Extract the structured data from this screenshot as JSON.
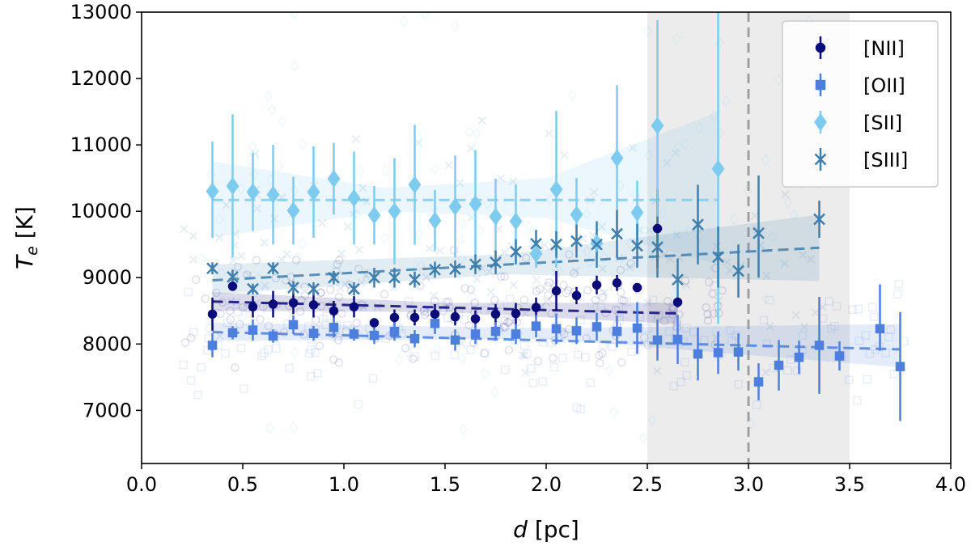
{
  "chart_data": {
    "type": "scatter",
    "xlabel_var": "d",
    "xlabel_unit": " [pc]",
    "ylabel_var": "T",
    "ylabel_sub": "e",
    "ylabel_unit": " [K]",
    "xlim": [
      0.0,
      4.0
    ],
    "ylim": [
      6200,
      13000
    ],
    "xticks": [
      "0.0",
      "0.5",
      "1.0",
      "1.5",
      "2.0",
      "2.5",
      "3.0",
      "3.5",
      "4.0"
    ],
    "yticks": [
      "7000",
      "8000",
      "9000",
      "10000",
      "11000",
      "12000",
      "13000"
    ],
    "shaded_region": [
      2.5,
      3.5
    ],
    "vline": 3.0,
    "legend_position": "top-right",
    "series": [
      {
        "name": "[NII]",
        "marker": "circle",
        "color": "#0b0b7a",
        "fit_line": [
          [
            0.35,
            8640
          ],
          [
            2.65,
            8460
          ]
        ],
        "points": [
          [
            0.35,
            8450,
            8200,
            8700
          ],
          [
            0.45,
            8870,
            8800,
            8940
          ],
          [
            0.55,
            8560,
            8400,
            8720
          ],
          [
            0.65,
            8600,
            8400,
            8800
          ],
          [
            0.75,
            8620,
            8450,
            8790
          ],
          [
            0.85,
            8590,
            8400,
            8780
          ],
          [
            0.95,
            8500,
            8350,
            8650
          ],
          [
            1.05,
            8560,
            8400,
            8720
          ],
          [
            1.15,
            8320,
            8250,
            8390
          ],
          [
            1.25,
            8400,
            8280,
            8520
          ],
          [
            1.35,
            8400,
            8280,
            8520
          ],
          [
            1.45,
            8450,
            8300,
            8600
          ],
          [
            1.55,
            8410,
            8280,
            8540
          ],
          [
            1.65,
            8380,
            8250,
            8510
          ],
          [
            1.75,
            8450,
            8300,
            8600
          ],
          [
            1.85,
            8460,
            8300,
            8620
          ],
          [
            1.95,
            8550,
            8400,
            8700
          ],
          [
            2.05,
            8800,
            8500,
            9100
          ],
          [
            2.15,
            8730,
            8600,
            8860
          ],
          [
            2.25,
            8890,
            8750,
            9030
          ],
          [
            2.35,
            8920,
            8800,
            9040
          ],
          [
            2.45,
            8850,
            8800,
            8900
          ],
          [
            2.55,
            9740,
            9150,
            10330
          ],
          [
            2.65,
            8630,
            8550,
            8710
          ]
        ]
      },
      {
        "name": "[OII]",
        "marker": "square",
        "color": "#4d7fde",
        "fit_line": [
          [
            0.35,
            8180
          ],
          [
            3.75,
            7920
          ]
        ],
        "points": [
          [
            0.35,
            7980,
            7800,
            8160
          ],
          [
            0.45,
            8170,
            8070,
            8270
          ],
          [
            0.55,
            8210,
            8050,
            8370
          ],
          [
            0.65,
            8120,
            8020,
            8220
          ],
          [
            0.75,
            8290,
            8150,
            8430
          ],
          [
            0.85,
            8160,
            8050,
            8270
          ],
          [
            0.95,
            8250,
            8100,
            8400
          ],
          [
            1.05,
            8150,
            8050,
            8250
          ],
          [
            1.15,
            8130,
            8000,
            8260
          ],
          [
            1.25,
            8190,
            8050,
            8330
          ],
          [
            1.35,
            8080,
            7950,
            8210
          ],
          [
            1.45,
            8310,
            8150,
            8470
          ],
          [
            1.55,
            8060,
            7900,
            8220
          ],
          [
            1.65,
            8150,
            8000,
            8300
          ],
          [
            1.75,
            8190,
            8050,
            8330
          ],
          [
            1.85,
            8150,
            8000,
            8300
          ],
          [
            1.95,
            8270,
            8100,
            8440
          ],
          [
            2.05,
            8230,
            8000,
            8460
          ],
          [
            2.15,
            8200,
            8000,
            8400
          ],
          [
            2.25,
            8260,
            8050,
            8470
          ],
          [
            2.35,
            8190,
            7950,
            8430
          ],
          [
            2.45,
            8240,
            7850,
            8630
          ],
          [
            2.55,
            8060,
            7750,
            8370
          ],
          [
            2.65,
            8070,
            7700,
            8440
          ],
          [
            2.75,
            7850,
            7450,
            8250
          ],
          [
            2.85,
            7870,
            7550,
            8190
          ],
          [
            2.95,
            7880,
            7600,
            8160
          ],
          [
            3.05,
            7430,
            7150,
            7710
          ],
          [
            3.15,
            7680,
            7300,
            8060
          ],
          [
            3.25,
            7800,
            7550,
            8050
          ],
          [
            3.35,
            7980,
            7250,
            8710
          ],
          [
            3.45,
            7820,
            7600,
            8040
          ],
          [
            3.65,
            8230,
            7900,
            8900
          ],
          [
            3.75,
            7660,
            6840,
            8480
          ]
        ]
      },
      {
        "name": "[SII]",
        "marker": "diamond",
        "color": "#7ecbf0",
        "fit_line": [
          [
            0.35,
            10170
          ],
          [
            2.85,
            10170
          ]
        ],
        "points": [
          [
            0.35,
            10300,
            9600,
            11050
          ],
          [
            0.45,
            10380,
            9300,
            11460
          ],
          [
            0.55,
            10290,
            9700,
            10880
          ],
          [
            0.65,
            10250,
            9500,
            11000
          ],
          [
            0.75,
            10010,
            9500,
            10520
          ],
          [
            0.85,
            10290,
            9600,
            10980
          ],
          [
            0.95,
            10490,
            9950,
            11030
          ],
          [
            1.05,
            10200,
            9500,
            10900
          ],
          [
            1.15,
            9940,
            9500,
            10380
          ],
          [
            1.25,
            10000,
            9200,
            10800
          ],
          [
            1.35,
            10400,
            9500,
            11300
          ],
          [
            1.45,
            9860,
            9400,
            10320
          ],
          [
            1.55,
            10070,
            9300,
            10840
          ],
          [
            1.65,
            10110,
            9300,
            10920
          ],
          [
            1.75,
            9920,
            9350,
            10490
          ],
          [
            1.85,
            9850,
            9300,
            10400
          ],
          [
            1.95,
            9360,
            9150,
            9570
          ],
          [
            2.05,
            10330,
            9150,
            11510
          ],
          [
            2.15,
            9950,
            9400,
            10500
          ],
          [
            2.25,
            9520,
            9300,
            9740
          ],
          [
            2.35,
            10800,
            9700,
            11900
          ],
          [
            2.45,
            9980,
            9500,
            10460
          ],
          [
            2.55,
            11290,
            9700,
            12880
          ],
          [
            2.85,
            10640,
            8300,
            13000
          ]
        ]
      },
      {
        "name": "[SIII]",
        "marker": "x",
        "color": "#3f7fae",
        "fit_line": [
          [
            0.35,
            8960
          ],
          [
            3.35,
            9450
          ]
        ],
        "points": [
          [
            0.35,
            9140,
            9050,
            9230
          ],
          [
            0.45,
            9010,
            8900,
            9120
          ],
          [
            0.55,
            8830,
            8750,
            8910
          ],
          [
            0.65,
            9140,
            9050,
            9230
          ],
          [
            0.75,
            8850,
            8750,
            8950
          ],
          [
            0.85,
            8830,
            8730,
            8930
          ],
          [
            0.95,
            9000,
            8900,
            9100
          ],
          [
            1.05,
            8830,
            8730,
            8930
          ],
          [
            1.15,
            9000,
            8850,
            9150
          ],
          [
            1.25,
            9000,
            8850,
            9150
          ],
          [
            1.35,
            8970,
            8850,
            9090
          ],
          [
            1.45,
            9120,
            9000,
            9240
          ],
          [
            1.55,
            9130,
            9000,
            9260
          ],
          [
            1.65,
            9200,
            9050,
            9350
          ],
          [
            1.75,
            9230,
            9050,
            9410
          ],
          [
            1.85,
            9390,
            9200,
            9580
          ],
          [
            1.95,
            9510,
            9300,
            9720
          ],
          [
            2.05,
            9500,
            9300,
            9700
          ],
          [
            2.15,
            9550,
            9300,
            9800
          ],
          [
            2.25,
            9500,
            9150,
            9850
          ],
          [
            2.35,
            9660,
            9300,
            10020
          ],
          [
            2.45,
            9480,
            9150,
            9810
          ],
          [
            2.55,
            9460,
            9000,
            9920
          ],
          [
            2.65,
            8970,
            8650,
            9290
          ],
          [
            2.75,
            9800,
            9200,
            10400
          ],
          [
            2.85,
            9310,
            8850,
            9770
          ],
          [
            2.95,
            9100,
            8700,
            9500
          ],
          [
            3.05,
            9670,
            9000,
            10540
          ],
          [
            3.35,
            9880,
            9600,
            10160
          ]
        ]
      }
    ],
    "confidence_bands": [
      {
        "series": "[NII]",
        "x": [
          0.35,
          1.5,
          2.65
        ],
        "lower": [
          8500,
          8480,
          8300
        ],
        "upper": [
          8780,
          8620,
          8620
        ]
      },
      {
        "series": "[OII]",
        "x": [
          0.35,
          2.0,
          3.75
        ],
        "lower": [
          8050,
          8080,
          7650
        ],
        "upper": [
          8320,
          8240,
          8300
        ]
      },
      {
        "series": "[SII]",
        "x": [
          0.35,
          1.2,
          2.0,
          2.85
        ],
        "lower": [
          9600,
          10000,
          9900,
          9200
        ],
        "upper": [
          10750,
          10350,
          10500,
          11500
        ]
      },
      {
        "series": "[SIII]",
        "x": [
          0.35,
          1.8,
          3.35
        ],
        "lower": [
          8750,
          9050,
          8950
        ],
        "upper": [
          9200,
          9350,
          9950
        ]
      }
    ]
  }
}
